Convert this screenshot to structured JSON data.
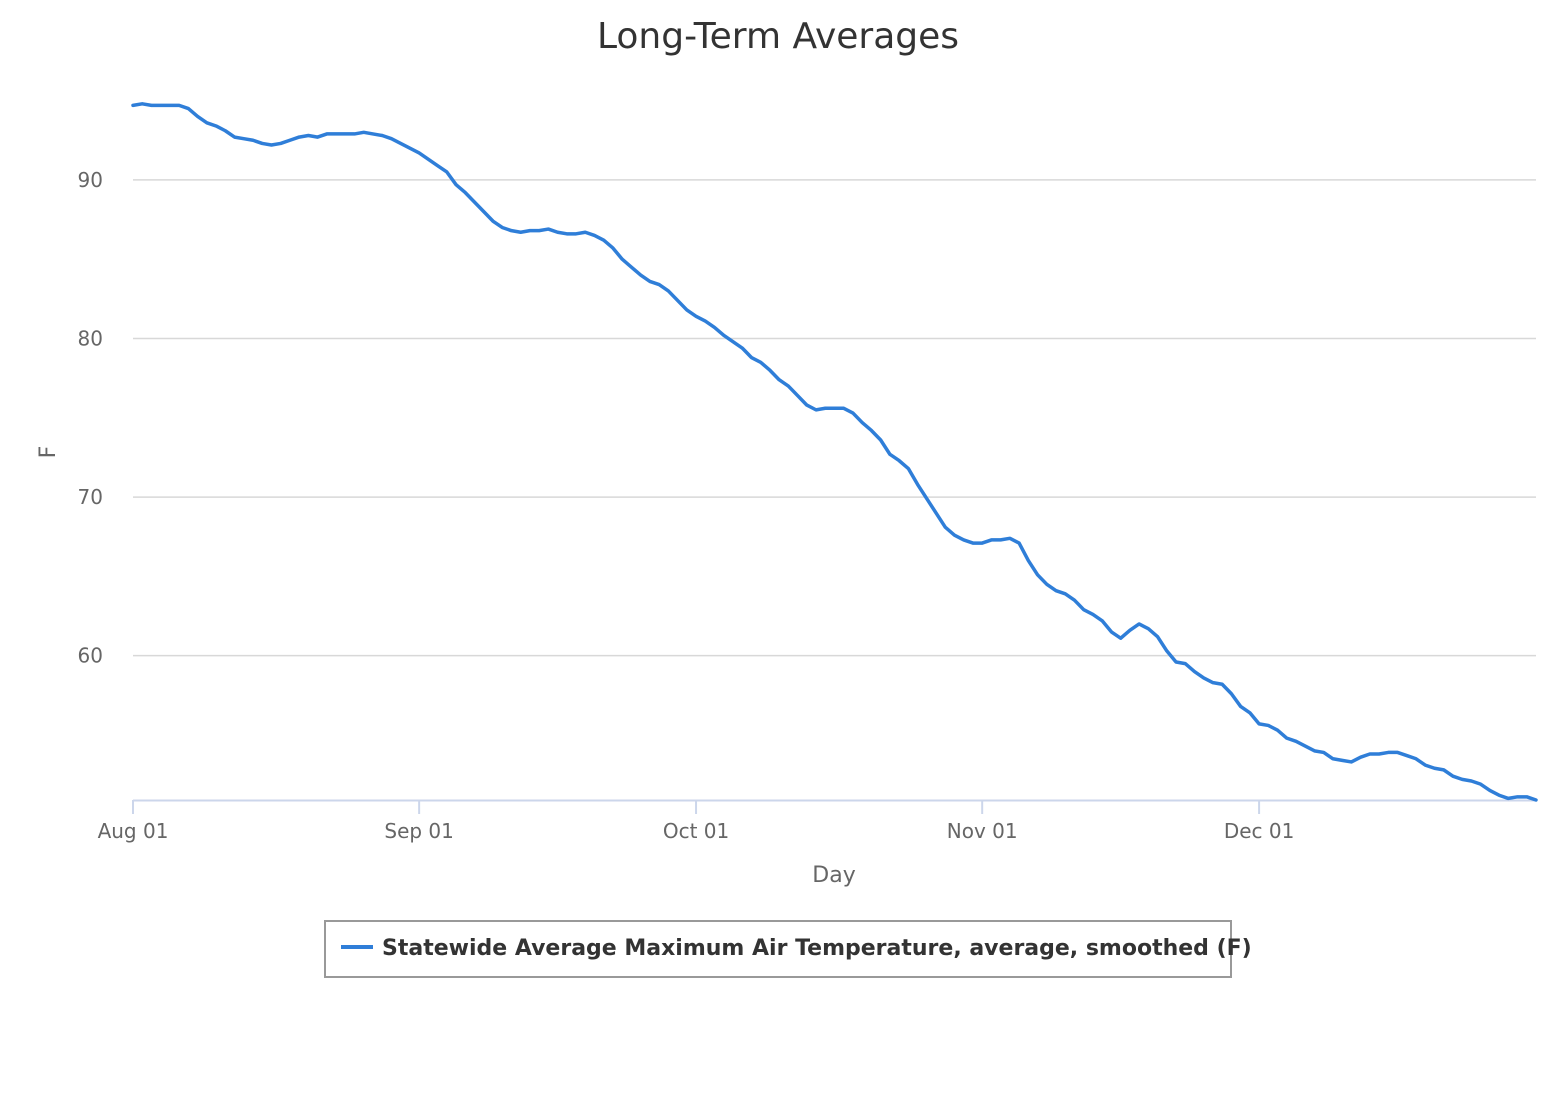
{
  "colors": {
    "series": "#2f7ed8",
    "grid": "#d8d8d8",
    "axis": "#ccd6eb",
    "text": "#333333",
    "muted": "#666666"
  },
  "chart_data": {
    "type": "line",
    "title": "Long-Term Averages",
    "xlabel": "Day",
    "ylabel": "F",
    "x_ticks": [
      "Aug 01",
      "Sep 01",
      "Oct 01",
      "Nov 01",
      "Dec 01"
    ],
    "x_range": [
      "Aug 01",
      "Dec 31"
    ],
    "y_ticks": [
      "60",
      "70",
      "80",
      "90"
    ],
    "ylim": [
      50.9,
      96.3
    ],
    "grid": true,
    "legend_position": "bottom-center",
    "series": [
      {
        "name": "Statewide Average Maximum Air Temperature, average, smoothed (F)",
        "color": "#2f7ed8",
        "points": [
          [
            "Aug 01",
            94.7
          ],
          [
            "Aug 02",
            94.8
          ],
          [
            "Aug 03",
            94.7
          ],
          [
            "Aug 04",
            94.7
          ],
          [
            "Aug 05",
            94.7
          ],
          [
            "Aug 06",
            94.7
          ],
          [
            "Aug 07",
            94.5
          ],
          [
            "Aug 08",
            94.0
          ],
          [
            "Aug 09",
            93.6
          ],
          [
            "Aug 10",
            93.4
          ],
          [
            "Aug 11",
            93.1
          ],
          [
            "Aug 12",
            92.7
          ],
          [
            "Aug 13",
            92.6
          ],
          [
            "Aug 14",
            92.5
          ],
          [
            "Aug 15",
            92.3
          ],
          [
            "Aug 16",
            92.2
          ],
          [
            "Aug 17",
            92.3
          ],
          [
            "Aug 18",
            92.5
          ],
          [
            "Aug 19",
            92.7
          ],
          [
            "Aug 20",
            92.8
          ],
          [
            "Aug 21",
            92.7
          ],
          [
            "Aug 22",
            92.9
          ],
          [
            "Aug 23",
            92.9
          ],
          [
            "Aug 24",
            92.9
          ],
          [
            "Aug 25",
            92.9
          ],
          [
            "Aug 26",
            93.0
          ],
          [
            "Aug 27",
            92.9
          ],
          [
            "Aug 28",
            92.8
          ],
          [
            "Aug 29",
            92.6
          ],
          [
            "Aug 30",
            92.3
          ],
          [
            "Aug 31",
            92.0
          ],
          [
            "Sep 01",
            91.7
          ],
          [
            "Sep 02",
            91.3
          ],
          [
            "Sep 03",
            90.9
          ],
          [
            "Sep 04",
            90.5
          ],
          [
            "Sep 05",
            89.7
          ],
          [
            "Sep 06",
            89.2
          ],
          [
            "Sep 07",
            88.6
          ],
          [
            "Sep 08",
            88.0
          ],
          [
            "Sep 09",
            87.4
          ],
          [
            "Sep 10",
            87.0
          ],
          [
            "Sep 11",
            86.8
          ],
          [
            "Sep 12",
            86.7
          ],
          [
            "Sep 13",
            86.8
          ],
          [
            "Sep 14",
            86.8
          ],
          [
            "Sep 15",
            86.9
          ],
          [
            "Sep 16",
            86.7
          ],
          [
            "Sep 17",
            86.6
          ],
          [
            "Sep 18",
            86.6
          ],
          [
            "Sep 19",
            86.7
          ],
          [
            "Sep 20",
            86.5
          ],
          [
            "Sep 21",
            86.2
          ],
          [
            "Sep 22",
            85.7
          ],
          [
            "Sep 23",
            85.0
          ],
          [
            "Sep 24",
            84.5
          ],
          [
            "Sep 25",
            84.0
          ],
          [
            "Sep 26",
            83.6
          ],
          [
            "Sep 27",
            83.4
          ],
          [
            "Sep 28",
            83.0
          ],
          [
            "Sep 29",
            82.4
          ],
          [
            "Sep 30",
            81.8
          ],
          [
            "Oct 01",
            81.4
          ],
          [
            "Oct 02",
            81.1
          ],
          [
            "Oct 03",
            80.7
          ],
          [
            "Oct 04",
            80.2
          ],
          [
            "Oct 05",
            79.8
          ],
          [
            "Oct 06",
            79.4
          ],
          [
            "Oct 07",
            78.8
          ],
          [
            "Oct 08",
            78.5
          ],
          [
            "Oct 09",
            78.0
          ],
          [
            "Oct 10",
            77.4
          ],
          [
            "Oct 11",
            77.0
          ],
          [
            "Oct 12",
            76.4
          ],
          [
            "Oct 13",
            75.8
          ],
          [
            "Oct 14",
            75.5
          ],
          [
            "Oct 15",
            75.6
          ],
          [
            "Oct 16",
            75.6
          ],
          [
            "Oct 17",
            75.6
          ],
          [
            "Oct 18",
            75.3
          ],
          [
            "Oct 19",
            74.7
          ],
          [
            "Oct 20",
            74.2
          ],
          [
            "Oct 21",
            73.6
          ],
          [
            "Oct 22",
            72.7
          ],
          [
            "Oct 23",
            72.3
          ],
          [
            "Oct 24",
            71.8
          ],
          [
            "Oct 25",
            70.8
          ],
          [
            "Oct 26",
            69.9
          ],
          [
            "Oct 27",
            69.0
          ],
          [
            "Oct 28",
            68.1
          ],
          [
            "Oct 29",
            67.6
          ],
          [
            "Oct 30",
            67.3
          ],
          [
            "Oct 31",
            67.1
          ],
          [
            "Nov 01",
            67.1
          ],
          [
            "Nov 02",
            67.3
          ],
          [
            "Nov 03",
            67.3
          ],
          [
            "Nov 04",
            67.4
          ],
          [
            "Nov 05",
            67.1
          ],
          [
            "Nov 06",
            66.0
          ],
          [
            "Nov 07",
            65.1
          ],
          [
            "Nov 08",
            64.5
          ],
          [
            "Nov 09",
            64.1
          ],
          [
            "Nov 10",
            63.9
          ],
          [
            "Nov 11",
            63.5
          ],
          [
            "Nov 12",
            62.9
          ],
          [
            "Nov 13",
            62.6
          ],
          [
            "Nov 14",
            62.2
          ],
          [
            "Nov 15",
            61.5
          ],
          [
            "Nov 16",
            61.1
          ],
          [
            "Nov 17",
            61.6
          ],
          [
            "Nov 18",
            62.0
          ],
          [
            "Nov 19",
            61.7
          ],
          [
            "Nov 20",
            61.2
          ],
          [
            "Nov 21",
            60.3
          ],
          [
            "Nov 22",
            59.6
          ],
          [
            "Nov 23",
            59.5
          ],
          [
            "Nov 24",
            59.0
          ],
          [
            "Nov 25",
            58.6
          ],
          [
            "Nov 26",
            58.3
          ],
          [
            "Nov 27",
            58.2
          ],
          [
            "Nov 28",
            57.6
          ],
          [
            "Nov 29",
            56.8
          ],
          [
            "Nov 30",
            56.4
          ],
          [
            "Dec 01",
            55.7
          ],
          [
            "Dec 02",
            55.6
          ],
          [
            "Dec 03",
            55.3
          ],
          [
            "Dec 04",
            54.8
          ],
          [
            "Dec 05",
            54.6
          ],
          [
            "Dec 06",
            54.3
          ],
          [
            "Dec 07",
            54.0
          ],
          [
            "Dec 08",
            53.9
          ],
          [
            "Dec 09",
            53.5
          ],
          [
            "Dec 10",
            53.4
          ],
          [
            "Dec 11",
            53.3
          ],
          [
            "Dec 12",
            53.6
          ],
          [
            "Dec 13",
            53.8
          ],
          [
            "Dec 14",
            53.8
          ],
          [
            "Dec 15",
            53.9
          ],
          [
            "Dec 16",
            53.9
          ],
          [
            "Dec 17",
            53.7
          ],
          [
            "Dec 18",
            53.5
          ],
          [
            "Dec 19",
            53.1
          ],
          [
            "Dec 20",
            52.9
          ],
          [
            "Dec 21",
            52.8
          ],
          [
            "Dec 22",
            52.4
          ],
          [
            "Dec 23",
            52.2
          ],
          [
            "Dec 24",
            52.1
          ],
          [
            "Dec 25",
            51.9
          ],
          [
            "Dec 26",
            51.5
          ],
          [
            "Dec 27",
            51.2
          ],
          [
            "Dec 28",
            51.0
          ],
          [
            "Dec 29",
            51.1
          ],
          [
            "Dec 30",
            51.1
          ],
          [
            "Dec 31",
            50.9
          ]
        ]
      }
    ]
  }
}
